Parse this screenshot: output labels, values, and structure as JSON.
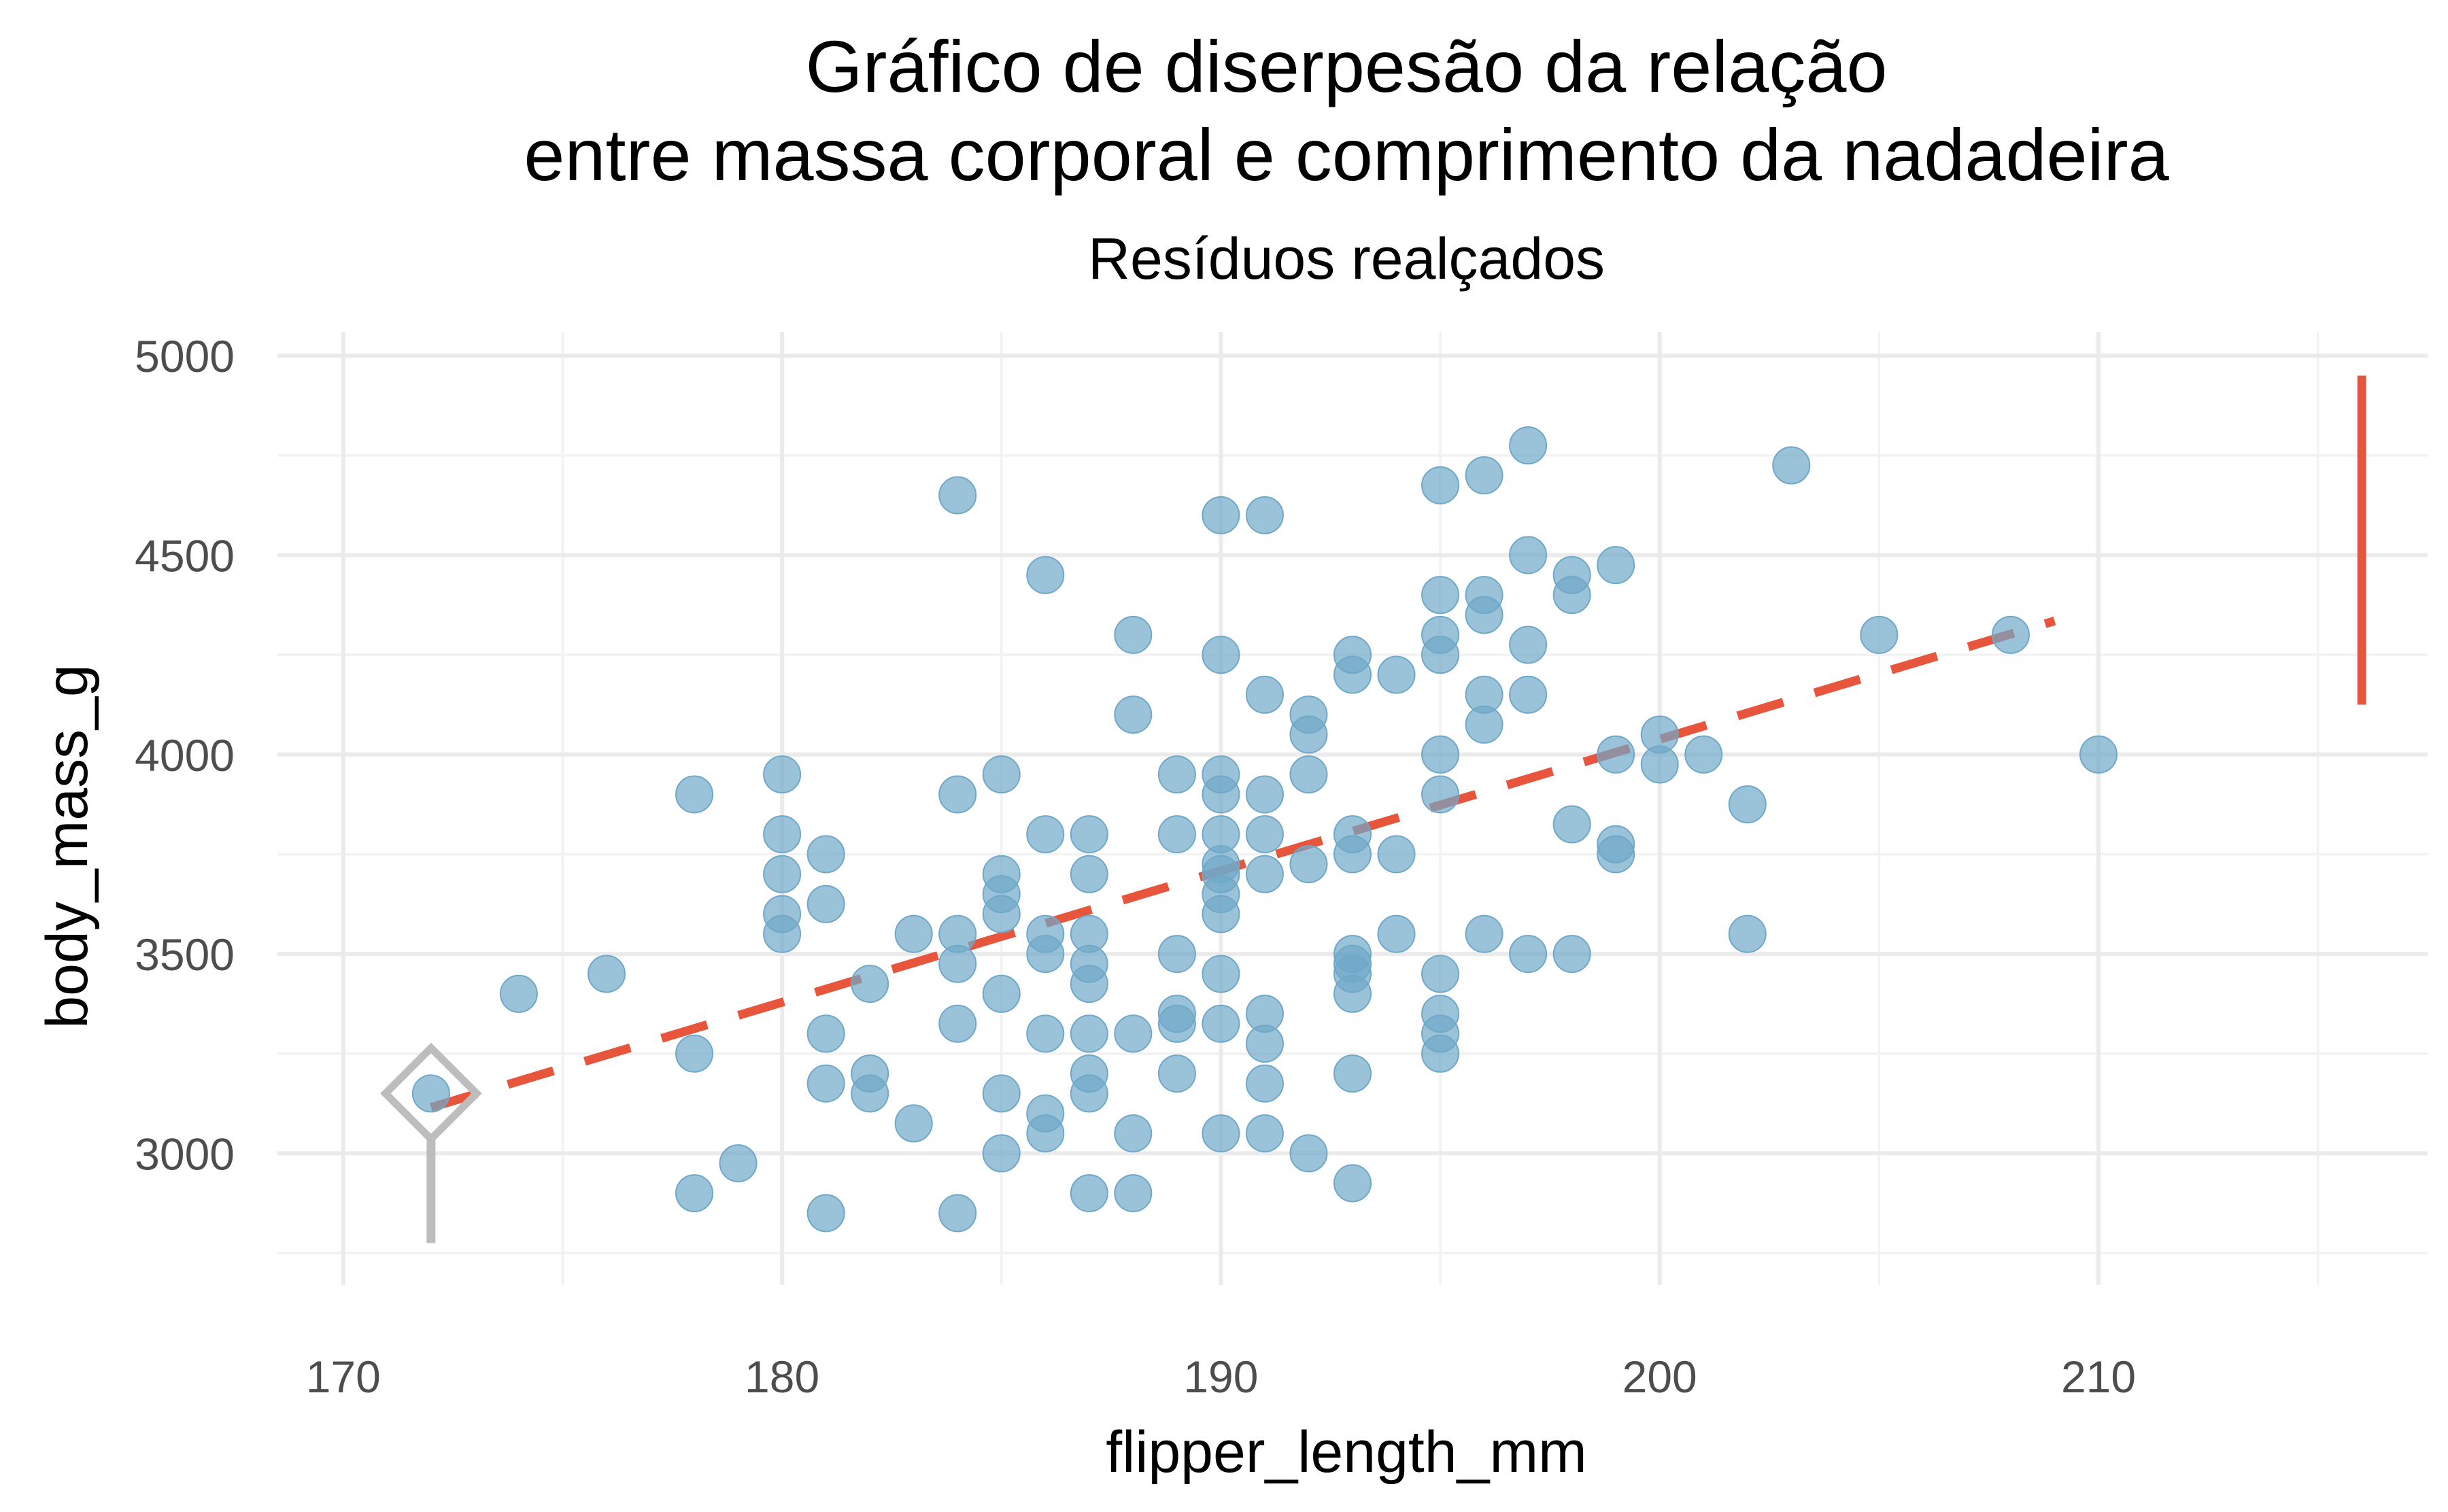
{
  "chart_data": {
    "type": "scatter",
    "title_line1": "Gráfico de diserpesão da relação",
    "title_line2": "entre massa corporal e comprimento da nadadeira",
    "subtitle": "Resíduos realçados",
    "xlabel": "flipper_length_mm",
    "ylabel": "body_mass_g",
    "xlim": [
      168.5,
      217.5
    ],
    "ylim": [
      2670,
      5060
    ],
    "x_ticks": [
      170,
      180,
      190,
      200,
      210
    ],
    "y_ticks": [
      3000,
      3500,
      4000,
      4500,
      5000
    ],
    "x_minor": [
      175,
      185,
      195,
      205,
      215
    ],
    "y_minor": [
      2750,
      3250,
      3750,
      4250,
      4750
    ],
    "grid": true,
    "colors": {
      "points": "#6fa8c8",
      "trend": "#e8553d",
      "highlight": "#bdbdbd",
      "residual_bar": "#e8553d"
    },
    "trend_line": {
      "x": [
        172,
        209
      ],
      "y": [
        3115,
        4335
      ],
      "style": "dashed"
    },
    "highlight": {
      "x": 172,
      "y": 3150,
      "shape": "diamond-with-stem",
      "stem_bottom": 2775
    },
    "residual_bar": {
      "x": 216,
      "y_min": 4125,
      "y_max": 4950
    },
    "points": [
      [
        172,
        3150
      ],
      [
        174,
        3400
      ],
      [
        176,
        3450
      ],
      [
        178,
        3900
      ],
      [
        178,
        3250
      ],
      [
        178,
        2900
      ],
      [
        179,
        2975
      ],
      [
        180,
        3950
      ],
      [
        180,
        3800
      ],
      [
        180,
        3700
      ],
      [
        180,
        3600
      ],
      [
        180,
        3550
      ],
      [
        181,
        3750
      ],
      [
        181,
        3625
      ],
      [
        181,
        3300
      ],
      [
        181,
        3175
      ],
      [
        181,
        2850
      ],
      [
        182,
        3425
      ],
      [
        182,
        3200
      ],
      [
        182,
        3150
      ],
      [
        183,
        3550
      ],
      [
        183,
        3075
      ],
      [
        184,
        4650
      ],
      [
        184,
        3900
      ],
      [
        184,
        3550
      ],
      [
        184,
        3475
      ],
      [
        184,
        3325
      ],
      [
        184,
        2850
      ],
      [
        185,
        3950
      ],
      [
        185,
        3700
      ],
      [
        185,
        3650
      ],
      [
        185,
        3600
      ],
      [
        185,
        3400
      ],
      [
        185,
        3150
      ],
      [
        185,
        3000
      ],
      [
        186,
        4450
      ],
      [
        186,
        3800
      ],
      [
        186,
        3550
      ],
      [
        186,
        3500
      ],
      [
        186,
        3300
      ],
      [
        186,
        3100
      ],
      [
        186,
        3050
      ],
      [
        187,
        3800
      ],
      [
        187,
        3700
      ],
      [
        187,
        3550
      ],
      [
        187,
        3475
      ],
      [
        187,
        3425
      ],
      [
        187,
        3300
      ],
      [
        187,
        3200
      ],
      [
        187,
        3150
      ],
      [
        187,
        2900
      ],
      [
        188,
        4300
      ],
      [
        188,
        4100
      ],
      [
        188,
        3300
      ],
      [
        188,
        3050
      ],
      [
        188,
        2900
      ],
      [
        189,
        3950
      ],
      [
        189,
        3800
      ],
      [
        189,
        3500
      ],
      [
        189,
        3350
      ],
      [
        189,
        3325
      ],
      [
        189,
        3200
      ],
      [
        190,
        4600
      ],
      [
        190,
        4250
      ],
      [
        190,
        3950
      ],
      [
        190,
        3900
      ],
      [
        190,
        3800
      ],
      [
        190,
        3725
      ],
      [
        190,
        3700
      ],
      [
        190,
        3650
      ],
      [
        190,
        3600
      ],
      [
        190,
        3450
      ],
      [
        190,
        3325
      ],
      [
        190,
        3050
      ],
      [
        191,
        4600
      ],
      [
        191,
        4150
      ],
      [
        191,
        3900
      ],
      [
        191,
        3800
      ],
      [
        191,
        3700
      ],
      [
        191,
        3350
      ],
      [
        191,
        3275
      ],
      [
        191,
        3175
      ],
      [
        191,
        3050
      ],
      [
        192,
        4100
      ],
      [
        192,
        4050
      ],
      [
        192,
        3950
      ],
      [
        192,
        3725
      ],
      [
        192,
        3000
      ],
      [
        193,
        4250
      ],
      [
        193,
        4200
      ],
      [
        193,
        3800
      ],
      [
        193,
        3750
      ],
      [
        193,
        3500
      ],
      [
        193,
        3475
      ],
      [
        193,
        3450
      ],
      [
        193,
        3400
      ],
      [
        193,
        3200
      ],
      [
        193,
        2925
      ],
      [
        194,
        4200
      ],
      [
        194,
        3750
      ],
      [
        194,
        3550
      ],
      [
        195,
        4675
      ],
      [
        195,
        4400
      ],
      [
        195,
        4300
      ],
      [
        195,
        4250
      ],
      [
        195,
        4000
      ],
      [
        195,
        3900
      ],
      [
        195,
        3450
      ],
      [
        195,
        3350
      ],
      [
        195,
        3300
      ],
      [
        195,
        3250
      ],
      [
        196,
        4700
      ],
      [
        196,
        4400
      ],
      [
        196,
        4350
      ],
      [
        196,
        4150
      ],
      [
        196,
        4075
      ],
      [
        196,
        3550
      ],
      [
        197,
        4775
      ],
      [
        197,
        4500
      ],
      [
        197,
        4275
      ],
      [
        197,
        4150
      ],
      [
        197,
        3500
      ],
      [
        198,
        4450
      ],
      [
        198,
        4400
      ],
      [
        198,
        3825
      ],
      [
        198,
        3500
      ],
      [
        199,
        4475
      ],
      [
        199,
        4000
      ],
      [
        199,
        3775
      ],
      [
        199,
        3750
      ],
      [
        200,
        4050
      ],
      [
        200,
        3975
      ],
      [
        201,
        4000
      ],
      [
        202,
        3875
      ],
      [
        202,
        3550
      ],
      [
        203,
        4725
      ],
      [
        205,
        4300
      ],
      [
        208,
        4300
      ],
      [
        210,
        4000
      ]
    ]
  }
}
